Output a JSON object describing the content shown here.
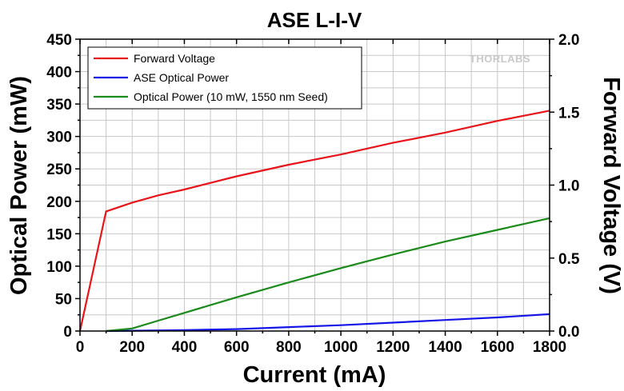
{
  "chart_data": {
    "type": "line",
    "title": "ASE L-I-V",
    "xlabel": "Current (mA)",
    "ylabel_left": "Optical Power (mW)",
    "ylabel_right": "Forward Voltage (V)",
    "xlim": [
      0,
      1800
    ],
    "ylim_left": [
      0,
      450
    ],
    "ylim_right": [
      0,
      2.0
    ],
    "x_ticks": [
      0,
      200,
      400,
      600,
      800,
      1000,
      1200,
      1400,
      1600,
      1800
    ],
    "y_left_ticks": [
      0,
      50,
      100,
      150,
      200,
      250,
      300,
      350,
      400,
      450
    ],
    "y_right_ticks": [
      "0.0",
      "0.5",
      "1.0",
      "1.5",
      "2.0"
    ],
    "grid": true,
    "legend_position": "top-left",
    "watermark": "THORLABS",
    "series": [
      {
        "name": "Forward Voltage",
        "axis": "right",
        "color": "#e8141a",
        "x": [
          0,
          100,
          200,
          300,
          400,
          600,
          800,
          1000,
          1200,
          1400,
          1600,
          1800
        ],
        "y": [
          0.0,
          0.82,
          0.88,
          0.93,
          0.97,
          1.06,
          1.14,
          1.21,
          1.29,
          1.36,
          1.44,
          1.51
        ]
      },
      {
        "name": "ASE Optical Power",
        "axis": "left",
        "color": "#1515e8",
        "x": [
          100,
          200,
          400,
          600,
          800,
          1000,
          1200,
          1400,
          1600,
          1800
        ],
        "y": [
          0,
          0.5,
          1.5,
          3,
          6,
          9,
          13,
          17,
          21,
          26
        ]
      },
      {
        "name": "Optical Power (10 mW, 1550 nm Seed)",
        "axis": "left",
        "color": "#1a8a1a",
        "x": [
          100,
          200,
          300,
          400,
          600,
          800,
          1000,
          1200,
          1400,
          1600,
          1800
        ],
        "y": [
          0,
          4,
          16,
          28,
          52,
          75,
          97,
          118,
          138,
          156,
          174
        ]
      }
    ]
  }
}
